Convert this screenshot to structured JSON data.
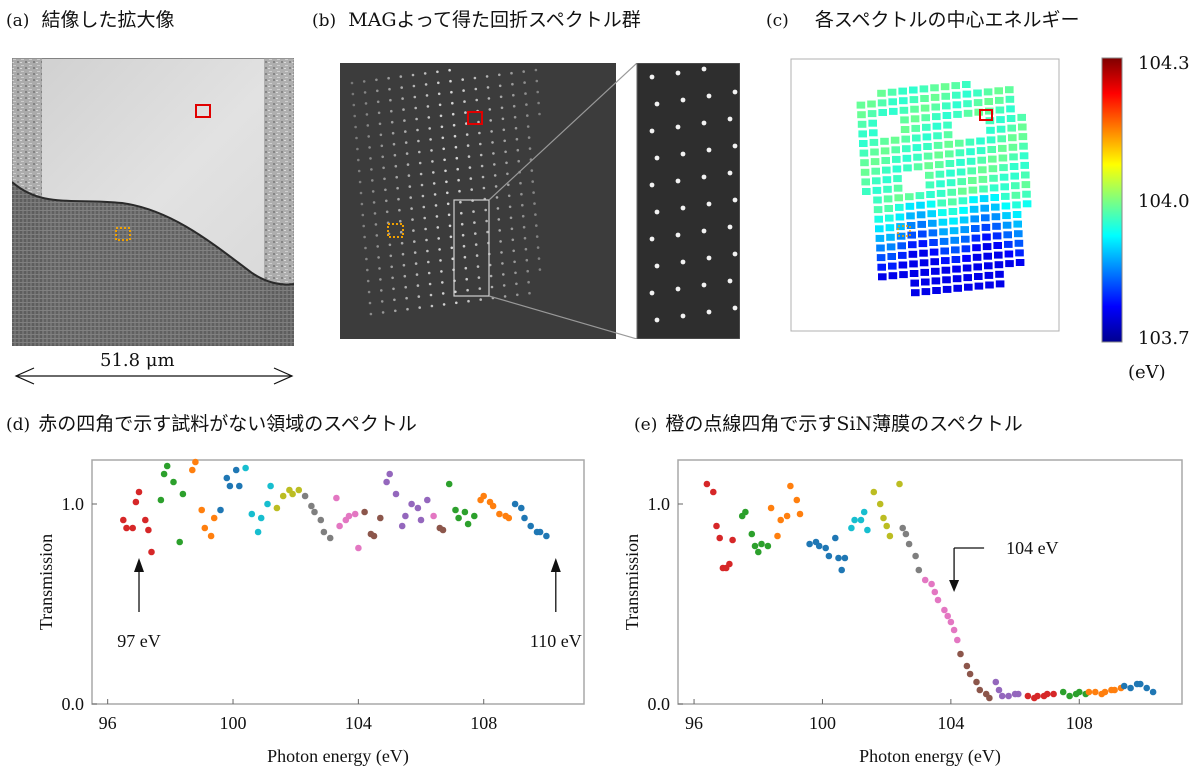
{
  "panel_a": {
    "tag": "(a)",
    "title": "結像した拡大像",
    "scale_label": "51.8 μm"
  },
  "panel_b": {
    "tag": "(b)",
    "title": "MAGよって得た回折スペクトル群"
  },
  "panel_c": {
    "tag": "(c)",
    "title": "各スペクトルの中心エネルギー",
    "colorbar": {
      "max_label": "104.3",
      "mid_label": "104.0",
      "min_label": "103.7",
      "unit": "(eV)",
      "range": [
        103.7,
        104.3
      ]
    }
  },
  "colors": {
    "red_box": "#e00000",
    "orange_box": "#f0a000",
    "series": [
      "#d62728",
      "#2ca02c",
      "#ff7f0e",
      "#1f77b4",
      "#17becf",
      "#bcbd22",
      "#7f7f7f",
      "#e377c2",
      "#8c564b",
      "#9467bd"
    ]
  },
  "panel_d": {
    "tag": "(d)",
    "title": "赤の四角で示す試料がない領域のスペクトル",
    "annotation_left": "97 eV",
    "annotation_right": "110 eV"
  },
  "panel_e": {
    "tag": "(e)",
    "title": "橙の点線四角で示すSiN薄膜のスペクトル",
    "annotation": "104 eV"
  },
  "chart_data": [
    {
      "id": "d",
      "type": "scatter",
      "xlabel": "Photon energy (eV)",
      "ylabel": "Transmission",
      "xlim": [
        95.5,
        111.2
      ],
      "ylim": [
        0.0,
        1.22
      ],
      "xticks": [
        96,
        100,
        104,
        108
      ],
      "xtick_labels": [
        "96",
        "100",
        "104",
        "108"
      ],
      "yticks": [
        0.0,
        1.0
      ],
      "ytick_labels": [
        "0.0",
        "1.0"
      ],
      "points": [
        [
          96.5,
          0.92,
          0
        ],
        [
          96.6,
          0.88,
          0
        ],
        [
          96.8,
          0.88,
          0
        ],
        [
          96.9,
          1.01,
          0
        ],
        [
          97.0,
          1.06,
          0
        ],
        [
          97.2,
          0.92,
          0
        ],
        [
          97.3,
          0.87,
          0
        ],
        [
          97.4,
          0.76,
          0
        ],
        [
          97.7,
          1.02,
          1
        ],
        [
          97.8,
          1.15,
          1
        ],
        [
          97.9,
          1.19,
          1
        ],
        [
          98.1,
          1.11,
          1
        ],
        [
          98.3,
          0.81,
          1
        ],
        [
          98.4,
          1.05,
          1
        ],
        [
          98.7,
          1.17,
          2
        ],
        [
          98.8,
          1.21,
          2
        ],
        [
          99.0,
          0.97,
          2
        ],
        [
          99.1,
          0.88,
          2
        ],
        [
          99.3,
          0.84,
          2
        ],
        [
          99.4,
          0.93,
          2
        ],
        [
          99.6,
          0.97,
          3
        ],
        [
          99.8,
          1.13,
          3
        ],
        [
          99.9,
          1.09,
          3
        ],
        [
          100.1,
          1.17,
          3
        ],
        [
          100.2,
          1.09,
          3
        ],
        [
          100.4,
          1.18,
          4
        ],
        [
          100.6,
          0.95,
          4
        ],
        [
          100.8,
          0.86,
          4
        ],
        [
          100.9,
          0.93,
          4
        ],
        [
          101.1,
          1.0,
          4
        ],
        [
          101.2,
          1.09,
          4
        ],
        [
          101.4,
          0.98,
          5
        ],
        [
          101.6,
          1.04,
          5
        ],
        [
          101.8,
          1.07,
          5
        ],
        [
          101.9,
          1.05,
          5
        ],
        [
          102.1,
          1.07,
          5
        ],
        [
          102.3,
          1.04,
          6
        ],
        [
          102.5,
          0.99,
          6
        ],
        [
          102.6,
          0.96,
          6
        ],
        [
          102.8,
          0.92,
          6
        ],
        [
          102.9,
          0.86,
          6
        ],
        [
          103.1,
          0.83,
          6
        ],
        [
          103.3,
          1.03,
          7
        ],
        [
          103.4,
          0.89,
          7
        ],
        [
          103.6,
          0.92,
          7
        ],
        [
          103.7,
          0.94,
          7
        ],
        [
          103.9,
          0.95,
          7
        ],
        [
          104.0,
          0.78,
          7
        ],
        [
          104.2,
          0.96,
          8
        ],
        [
          104.4,
          0.85,
          8
        ],
        [
          104.5,
          0.84,
          8
        ],
        [
          104.7,
          0.93,
          8
        ],
        [
          104.9,
          1.11,
          9
        ],
        [
          105.0,
          1.15,
          9
        ],
        [
          105.2,
          1.05,
          9
        ],
        [
          105.4,
          0.89,
          9
        ],
        [
          105.5,
          0.94,
          9
        ],
        [
          105.7,
          1.0,
          9
        ],
        [
          105.9,
          0.98,
          9
        ],
        [
          106.0,
          0.92,
          9
        ],
        [
          106.2,
          1.02,
          9
        ],
        [
          106.4,
          0.94,
          7
        ],
        [
          106.6,
          0.88,
          8
        ],
        [
          106.7,
          0.87,
          8
        ],
        [
          106.9,
          1.1,
          1
        ],
        [
          107.1,
          0.97,
          1
        ],
        [
          107.2,
          0.93,
          1
        ],
        [
          107.4,
          0.96,
          1
        ],
        [
          107.5,
          0.9,
          1
        ],
        [
          107.7,
          0.94,
          1
        ],
        [
          107.9,
          1.02,
          2
        ],
        [
          108.0,
          1.04,
          2
        ],
        [
          108.2,
          1.01,
          2
        ],
        [
          108.3,
          0.99,
          2
        ],
        [
          108.5,
          0.95,
          2
        ],
        [
          108.7,
          0.94,
          2
        ],
        [
          108.8,
          0.93,
          2
        ],
        [
          109.0,
          1.0,
          3
        ],
        [
          109.2,
          0.98,
          3
        ],
        [
          109.3,
          0.93,
          3
        ],
        [
          109.5,
          0.89,
          3
        ],
        [
          109.7,
          0.86,
          3
        ],
        [
          109.8,
          0.86,
          3
        ],
        [
          110.0,
          0.84,
          3
        ]
      ]
    },
    {
      "id": "e",
      "type": "scatter",
      "xlabel": "Photon energy (eV)",
      "ylabel": "Transmission",
      "xlim": [
        95.5,
        111.2
      ],
      "ylim": [
        0.0,
        1.22
      ],
      "xticks": [
        96,
        100,
        104,
        108
      ],
      "xtick_labels": [
        "96",
        "100",
        "104",
        "108"
      ],
      "yticks": [
        0.0,
        1.0
      ],
      "ytick_labels": [
        "0.0",
        "1.0"
      ],
      "points": [
        [
          96.4,
          1.1,
          0
        ],
        [
          96.6,
          1.06,
          0
        ],
        [
          96.7,
          0.89,
          0
        ],
        [
          96.8,
          0.83,
          0
        ],
        [
          96.9,
          0.68,
          0
        ],
        [
          97.0,
          0.68,
          0
        ],
        [
          97.1,
          0.7,
          0
        ],
        [
          97.2,
          0.82,
          0
        ],
        [
          97.5,
          0.94,
          1
        ],
        [
          97.6,
          0.96,
          1
        ],
        [
          97.8,
          0.85,
          1
        ],
        [
          97.9,
          0.79,
          1
        ],
        [
          98.0,
          0.76,
          1
        ],
        [
          98.1,
          0.8,
          1
        ],
        [
          98.3,
          0.79,
          1
        ],
        [
          98.4,
          0.98,
          2
        ],
        [
          98.6,
          0.84,
          2
        ],
        [
          98.7,
          0.92,
          2
        ],
        [
          98.9,
          0.94,
          2
        ],
        [
          99.0,
          1.09,
          2
        ],
        [
          99.2,
          1.02,
          2
        ],
        [
          99.3,
          0.95,
          2
        ],
        [
          99.6,
          0.8,
          3
        ],
        [
          99.8,
          0.81,
          3
        ],
        [
          99.9,
          0.79,
          3
        ],
        [
          100.1,
          0.78,
          3
        ],
        [
          100.2,
          0.74,
          3
        ],
        [
          100.4,
          0.83,
          3
        ],
        [
          100.5,
          0.73,
          3
        ],
        [
          100.6,
          0.67,
          3
        ],
        [
          100.7,
          0.73,
          3
        ],
        [
          100.9,
          0.88,
          4
        ],
        [
          101.0,
          0.92,
          4
        ],
        [
          101.2,
          0.92,
          4
        ],
        [
          101.3,
          0.96,
          4
        ],
        [
          101.4,
          0.87,
          4
        ],
        [
          101.6,
          1.06,
          5
        ],
        [
          101.8,
          1.0,
          5
        ],
        [
          101.9,
          0.93,
          5
        ],
        [
          102.0,
          0.89,
          5
        ],
        [
          102.1,
          0.84,
          5
        ],
        [
          102.4,
          1.1,
          5
        ],
        [
          102.5,
          0.88,
          6
        ],
        [
          102.6,
          0.85,
          6
        ],
        [
          102.7,
          0.8,
          6
        ],
        [
          102.9,
          0.74,
          6
        ],
        [
          103.0,
          0.67,
          6
        ],
        [
          103.2,
          0.62,
          7
        ],
        [
          103.4,
          0.6,
          7
        ],
        [
          103.5,
          0.56,
          7
        ],
        [
          103.6,
          0.52,
          7
        ],
        [
          103.8,
          0.47,
          7
        ],
        [
          103.9,
          0.44,
          7
        ],
        [
          104.0,
          0.41,
          7
        ],
        [
          104.1,
          0.37,
          7
        ],
        [
          104.2,
          0.32,
          7
        ],
        [
          104.3,
          0.25,
          8
        ],
        [
          104.5,
          0.19,
          8
        ],
        [
          104.6,
          0.15,
          8
        ],
        [
          104.8,
          0.11,
          8
        ],
        [
          104.9,
          0.07,
          8
        ],
        [
          105.1,
          0.05,
          8
        ],
        [
          105.2,
          0.03,
          8
        ],
        [
          105.4,
          0.11,
          9
        ],
        [
          105.5,
          0.07,
          9
        ],
        [
          105.6,
          0.04,
          9
        ],
        [
          105.8,
          0.04,
          9
        ],
        [
          106.0,
          0.05,
          9
        ],
        [
          106.1,
          0.05,
          9
        ],
        [
          106.4,
          0.04,
          0
        ],
        [
          106.6,
          0.03,
          0
        ],
        [
          106.7,
          0.04,
          0
        ],
        [
          106.9,
          0.04,
          0
        ],
        [
          107.0,
          0.05,
          0
        ],
        [
          107.2,
          0.05,
          0
        ],
        [
          107.5,
          0.06,
          1
        ],
        [
          107.7,
          0.04,
          1
        ],
        [
          107.9,
          0.05,
          1
        ],
        [
          108.0,
          0.06,
          1
        ],
        [
          108.2,
          0.05,
          1
        ],
        [
          108.3,
          0.06,
          2
        ],
        [
          108.5,
          0.06,
          2
        ],
        [
          108.7,
          0.05,
          2
        ],
        [
          108.8,
          0.06,
          2
        ],
        [
          109.0,
          0.07,
          2
        ],
        [
          109.1,
          0.07,
          2
        ],
        [
          109.3,
          0.08,
          2
        ],
        [
          109.4,
          0.09,
          3
        ],
        [
          109.6,
          0.08,
          3
        ],
        [
          109.8,
          0.1,
          3
        ],
        [
          109.9,
          0.1,
          3
        ],
        [
          110.1,
          0.08,
          3
        ],
        [
          110.3,
          0.06,
          3
        ]
      ]
    }
  ]
}
